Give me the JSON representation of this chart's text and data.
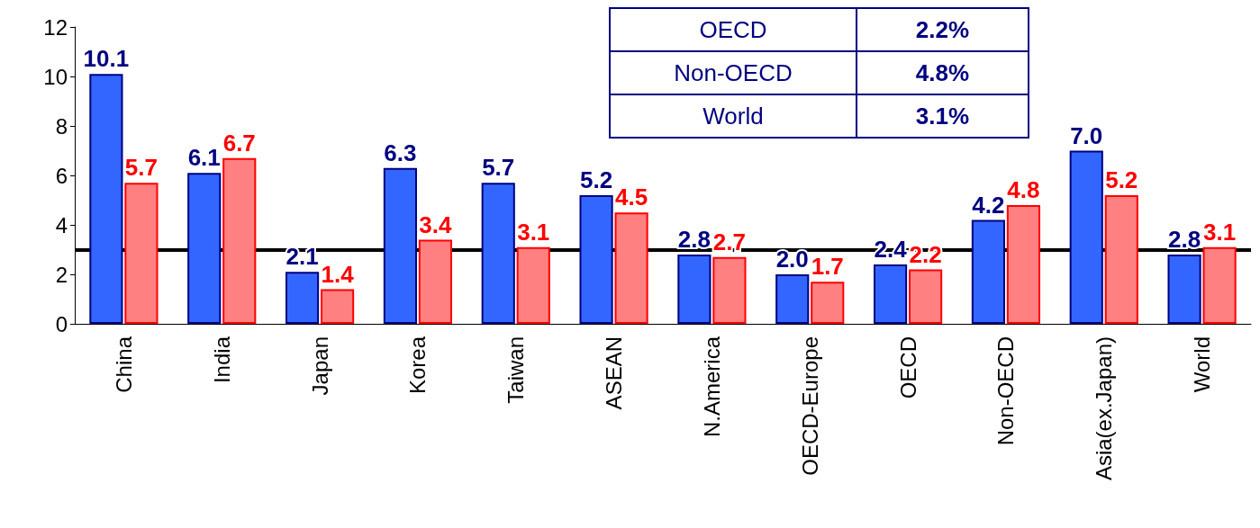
{
  "chart_data": {
    "type": "bar",
    "categories": [
      "China",
      "India",
      "Japan",
      "Korea",
      "Taiwan",
      "ASEAN",
      "N.America",
      "OECD-Europe",
      "OECD",
      "Non-OECD",
      "Asia(ex.Japan)",
      "World"
    ],
    "series": [
      {
        "color": "#3366ff",
        "values": [
          10.1,
          6.1,
          2.1,
          6.3,
          5.7,
          5.2,
          2.8,
          2.0,
          2.4,
          4.2,
          7.0,
          2.8
        ],
        "value_labels": [
          "10.1",
          "6.1",
          "2.1",
          "6.3",
          "5.7",
          "5.2",
          "2.8",
          "2.0",
          "2.4",
          "4.2",
          "7.0",
          "2.8"
        ]
      },
      {
        "color": "#ff8080",
        "values": [
          5.7,
          6.7,
          1.4,
          3.4,
          3.1,
          4.5,
          2.7,
          1.7,
          2.2,
          4.8,
          5.2,
          3.1
        ],
        "value_labels": [
          "5.7",
          "6.7",
          "1.4",
          "3.4",
          "3.1",
          "4.5",
          "2.7",
          "1.7",
          "2.2",
          "4.8",
          "5.2",
          "3.1"
        ]
      }
    ],
    "ylim": [
      0,
      12
    ],
    "yticks": [
      0,
      2,
      4,
      6,
      8,
      10,
      12
    ],
    "grid": false,
    "ref_lines": [
      {
        "axis": "y",
        "value": 3,
        "color": "#000000"
      }
    ],
    "annotations": [
      "OECD",
      "2.2%",
      "Non-OECD",
      "4.8%",
      "World",
      "3.1%"
    ]
  }
}
